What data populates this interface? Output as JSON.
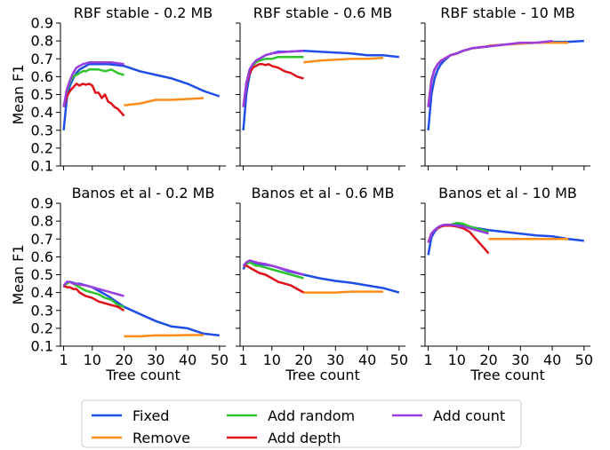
{
  "chart_data": {
    "type": "line",
    "xlim": [
      0,
      52
    ],
    "ylim": [
      0.1,
      0.9
    ],
    "xticks": [
      1,
      10,
      20,
      30,
      40,
      50
    ],
    "yticks": [
      0.1,
      0.2,
      0.3,
      0.4,
      0.5,
      0.6,
      0.7,
      0.8,
      0.9
    ],
    "xlabel": "Tree count",
    "ylabel": "Mean F1",
    "grid": false,
    "legend_position": "bottom-center",
    "series_styles": [
      {
        "name": "Fixed",
        "color": "#1f4ee6"
      },
      {
        "name": "Remove",
        "color": "#ff8c1a"
      },
      {
        "name": "Add random",
        "color": "#2ec42e"
      },
      {
        "name": "Add depth",
        "color": "#e0101a"
      },
      {
        "name": "Add count",
        "color": "#9a3de0"
      }
    ],
    "panels": [
      {
        "title": "RBF stable - 0.2 MB",
        "series": [
          {
            "name": "Fixed",
            "x": [
              1,
              2,
              3,
              4,
              5,
              6,
              7,
              8,
              9,
              10,
              12,
              15,
              20,
              25,
              30,
              35,
              40,
              45,
              50
            ],
            "y": [
              0.3,
              0.48,
              0.55,
              0.59,
              0.62,
              0.64,
              0.65,
              0.66,
              0.67,
              0.67,
              0.67,
              0.67,
              0.66,
              0.63,
              0.61,
              0.59,
              0.56,
              0.52,
              0.49
            ]
          },
          {
            "name": "Remove",
            "x": [
              20,
              25,
              30,
              35,
              40,
              45
            ],
            "y": [
              0.44,
              0.45,
              0.47,
              0.47,
              0.475,
              0.48
            ]
          },
          {
            "name": "Add random",
            "x": [
              1,
              2,
              3,
              4,
              5,
              6,
              7,
              8,
              9,
              10,
              12,
              14,
              16,
              18,
              20
            ],
            "y": [
              0.43,
              0.52,
              0.57,
              0.6,
              0.61,
              0.62,
              0.63,
              0.63,
              0.64,
              0.64,
              0.64,
              0.63,
              0.64,
              0.62,
              0.61
            ]
          },
          {
            "name": "Add depth",
            "x": [
              1,
              2,
              3,
              4,
              5,
              6,
              7,
              8,
              9,
              10,
              11,
              12,
              13,
              14,
              15,
              16,
              17,
              18,
              19,
              20
            ],
            "y": [
              0.43,
              0.49,
              0.52,
              0.54,
              0.56,
              0.55,
              0.56,
              0.555,
              0.56,
              0.55,
              0.51,
              0.51,
              0.48,
              0.5,
              0.46,
              0.45,
              0.43,
              0.42,
              0.4,
              0.38
            ]
          },
          {
            "name": "Add count",
            "x": [
              1,
              2,
              3,
              4,
              5,
              6,
              7,
              8,
              9,
              10,
              12,
              14,
              16,
              18,
              20
            ],
            "y": [
              0.43,
              0.53,
              0.58,
              0.62,
              0.65,
              0.66,
              0.67,
              0.675,
              0.68,
              0.68,
              0.68,
              0.68,
              0.68,
              0.675,
              0.67
            ]
          }
        ]
      },
      {
        "title": "RBF stable - 0.6 MB",
        "series": [
          {
            "name": "Fixed",
            "x": [
              1,
              2,
              3,
              4,
              5,
              6,
              8,
              10,
              12,
              15,
              20,
              25,
              30,
              35,
              40,
              45,
              50
            ],
            "y": [
              0.3,
              0.51,
              0.61,
              0.66,
              0.69,
              0.7,
              0.72,
              0.73,
              0.74,
              0.74,
              0.745,
              0.74,
              0.735,
              0.73,
              0.72,
              0.72,
              0.71
            ]
          },
          {
            "name": "Remove",
            "x": [
              20,
              25,
              30,
              35,
              40,
              45
            ],
            "y": [
              0.68,
              0.69,
              0.695,
              0.7,
              0.7,
              0.705
            ]
          },
          {
            "name": "Add random",
            "x": [
              1,
              2,
              3,
              4,
              5,
              6,
              8,
              10,
              12,
              15,
              20
            ],
            "y": [
              0.43,
              0.56,
              0.63,
              0.66,
              0.68,
              0.69,
              0.7,
              0.7,
              0.71,
              0.71,
              0.71
            ]
          },
          {
            "name": "Add depth",
            "x": [
              1,
              2,
              3,
              4,
              5,
              6,
              7,
              8,
              9,
              10,
              12,
              14,
              16,
              18,
              20
            ],
            "y": [
              0.43,
              0.56,
              0.62,
              0.65,
              0.66,
              0.67,
              0.67,
              0.665,
              0.67,
              0.66,
              0.65,
              0.63,
              0.62,
              0.6,
              0.59
            ]
          },
          {
            "name": "Add count",
            "x": [
              1,
              2,
              3,
              4,
              5,
              6,
              8,
              10,
              12,
              15,
              20
            ],
            "y": [
              0.43,
              0.57,
              0.64,
              0.67,
              0.69,
              0.7,
              0.72,
              0.73,
              0.735,
              0.74,
              0.745
            ]
          }
        ]
      },
      {
        "title": "RBF stable - 10 MB",
        "series": [
          {
            "name": "Fixed",
            "x": [
              1,
              2,
              3,
              4,
              5,
              6,
              8,
              10,
              12,
              15,
              20,
              25,
              30,
              35,
              40,
              45,
              50
            ],
            "y": [
              0.3,
              0.5,
              0.59,
              0.64,
              0.67,
              0.69,
              0.72,
              0.73,
              0.745,
              0.76,
              0.77,
              0.78,
              0.785,
              0.79,
              0.795,
              0.795,
              0.8
            ]
          },
          {
            "name": "Remove",
            "x": [
              20,
              25,
              30,
              35,
              40,
              45
            ],
            "y": [
              0.775,
              0.78,
              0.785,
              0.79,
              0.79,
              0.79
            ]
          },
          {
            "name": "Add random",
            "x": [
              1,
              2,
              3,
              4,
              5,
              6,
              8,
              10,
              12,
              15,
              20
            ],
            "y": [
              0.43,
              0.58,
              0.64,
              0.67,
              0.69,
              0.7,
              0.72,
              0.73,
              0.745,
              0.76,
              0.77
            ]
          },
          {
            "name": "Add depth",
            "x": [
              1,
              2,
              3,
              4,
              5,
              6,
              8,
              10,
              12,
              15,
              20
            ],
            "y": [
              0.43,
              0.58,
              0.64,
              0.67,
              0.69,
              0.7,
              0.72,
              0.73,
              0.745,
              0.76,
              0.77
            ]
          },
          {
            "name": "Add count",
            "x": [
              1,
              2,
              3,
              4,
              5,
              6,
              8,
              10,
              12,
              15,
              20,
              25,
              30,
              35,
              40
            ],
            "y": [
              0.43,
              0.58,
              0.64,
              0.67,
              0.69,
              0.7,
              0.72,
              0.73,
              0.745,
              0.76,
              0.77,
              0.78,
              0.79,
              0.79,
              0.8
            ]
          }
        ]
      },
      {
        "title": "Banos et al - 0.2 MB",
        "series": [
          {
            "name": "Fixed",
            "x": [
              1,
              2,
              3,
              4,
              5,
              6,
              8,
              10,
              12,
              15,
              20,
              25,
              30,
              35,
              40,
              45,
              50
            ],
            "y": [
              0.43,
              0.46,
              0.46,
              0.455,
              0.45,
              0.45,
              0.44,
              0.43,
              0.41,
              0.38,
              0.32,
              0.28,
              0.24,
              0.21,
              0.2,
              0.17,
              0.16
            ]
          },
          {
            "name": "Remove",
            "x": [
              20,
              25,
              30,
              35,
              40,
              45
            ],
            "y": [
              0.155,
              0.155,
              0.16,
              0.16,
              0.162,
              0.162
            ]
          },
          {
            "name": "Add random",
            "x": [
              1,
              2,
              3,
              4,
              5,
              6,
              8,
              10,
              12,
              14,
              16,
              18,
              20
            ],
            "y": [
              0.44,
              0.45,
              0.46,
              0.45,
              0.44,
              0.43,
              0.41,
              0.4,
              0.39,
              0.37,
              0.36,
              0.33,
              0.32
            ]
          },
          {
            "name": "Add depth",
            "x": [
              1,
              2,
              3,
              4,
              5,
              6,
              8,
              10,
              12,
              14,
              16,
              18,
              20
            ],
            "y": [
              0.44,
              0.43,
              0.43,
              0.42,
              0.42,
              0.4,
              0.38,
              0.37,
              0.35,
              0.34,
              0.33,
              0.32,
              0.3
            ]
          },
          {
            "name": "Add count",
            "x": [
              1,
              2,
              3,
              4,
              5,
              6,
              8,
              10,
              12,
              14,
              16,
              18,
              20
            ],
            "y": [
              0.44,
              0.46,
              0.46,
              0.45,
              0.45,
              0.445,
              0.44,
              0.43,
              0.42,
              0.41,
              0.4,
              0.39,
              0.38
            ]
          }
        ]
      },
      {
        "title": "Banos et al - 0.6 MB",
        "series": [
          {
            "name": "Fixed",
            "x": [
              1,
              2,
              3,
              4,
              5,
              6,
              8,
              10,
              12,
              15,
              20,
              25,
              30,
              35,
              40,
              45,
              50
            ],
            "y": [
              0.53,
              0.57,
              0.575,
              0.57,
              0.565,
              0.56,
              0.555,
              0.55,
              0.54,
              0.52,
              0.5,
              0.48,
              0.465,
              0.455,
              0.44,
              0.425,
              0.4
            ]
          },
          {
            "name": "Remove",
            "x": [
              20,
              25,
              30,
              35,
              40,
              45
            ],
            "y": [
              0.4,
              0.4,
              0.4,
              0.405,
              0.405,
              0.405
            ]
          },
          {
            "name": "Add random",
            "x": [
              1,
              2,
              3,
              4,
              5,
              6,
              8,
              10,
              12,
              14,
              16,
              18,
              20
            ],
            "y": [
              0.55,
              0.56,
              0.57,
              0.56,
              0.55,
              0.55,
              0.54,
              0.53,
              0.52,
              0.51,
              0.5,
              0.49,
              0.48
            ]
          },
          {
            "name": "Add depth",
            "x": [
              1,
              2,
              3,
              4,
              5,
              6,
              8,
              10,
              12,
              14,
              16,
              18,
              20
            ],
            "y": [
              0.55,
              0.55,
              0.54,
              0.53,
              0.52,
              0.51,
              0.5,
              0.48,
              0.46,
              0.45,
              0.44,
              0.42,
              0.4
            ]
          },
          {
            "name": "Add count",
            "x": [
              1,
              2,
              3,
              4,
              5,
              6,
              8,
              10,
              12,
              14,
              16,
              18,
              20
            ],
            "y": [
              0.55,
              0.57,
              0.58,
              0.575,
              0.57,
              0.565,
              0.56,
              0.55,
              0.54,
              0.53,
              0.52,
              0.51,
              0.5
            ]
          }
        ]
      },
      {
        "title": "Banos et al - 10 MB",
        "series": [
          {
            "name": "Fixed",
            "x": [
              1,
              2,
              3,
              4,
              5,
              6,
              8,
              10,
              12,
              15,
              20,
              25,
              30,
              35,
              40,
              45,
              50
            ],
            "y": [
              0.61,
              0.71,
              0.74,
              0.76,
              0.77,
              0.775,
              0.78,
              0.78,
              0.775,
              0.765,
              0.75,
              0.74,
              0.73,
              0.72,
              0.715,
              0.7,
              0.69
            ]
          },
          {
            "name": "Remove",
            "x": [
              20,
              25,
              30,
              35,
              40,
              45
            ],
            "y": [
              0.7,
              0.7,
              0.7,
              0.7,
              0.7,
              0.7
            ]
          },
          {
            "name": "Add random",
            "x": [
              1,
              2,
              3,
              4,
              5,
              6,
              8,
              10,
              12,
              14,
              16,
              18,
              20
            ],
            "y": [
              0.68,
              0.73,
              0.75,
              0.76,
              0.77,
              0.775,
              0.78,
              0.79,
              0.785,
              0.77,
              0.76,
              0.75,
              0.74
            ]
          },
          {
            "name": "Add depth",
            "x": [
              1,
              2,
              3,
              4,
              5,
              6,
              8,
              10,
              12,
              14,
              16,
              18,
              20
            ],
            "y": [
              0.68,
              0.73,
              0.75,
              0.76,
              0.77,
              0.775,
              0.775,
              0.77,
              0.76,
              0.74,
              0.7,
              0.66,
              0.62
            ]
          },
          {
            "name": "Add count",
            "x": [
              1,
              2,
              3,
              4,
              5,
              6,
              8,
              10,
              12,
              14,
              16,
              18,
              20
            ],
            "y": [
              0.68,
              0.73,
              0.75,
              0.765,
              0.775,
              0.78,
              0.78,
              0.775,
              0.77,
              0.76,
              0.75,
              0.74,
              0.73
            ]
          }
        ]
      }
    ]
  }
}
